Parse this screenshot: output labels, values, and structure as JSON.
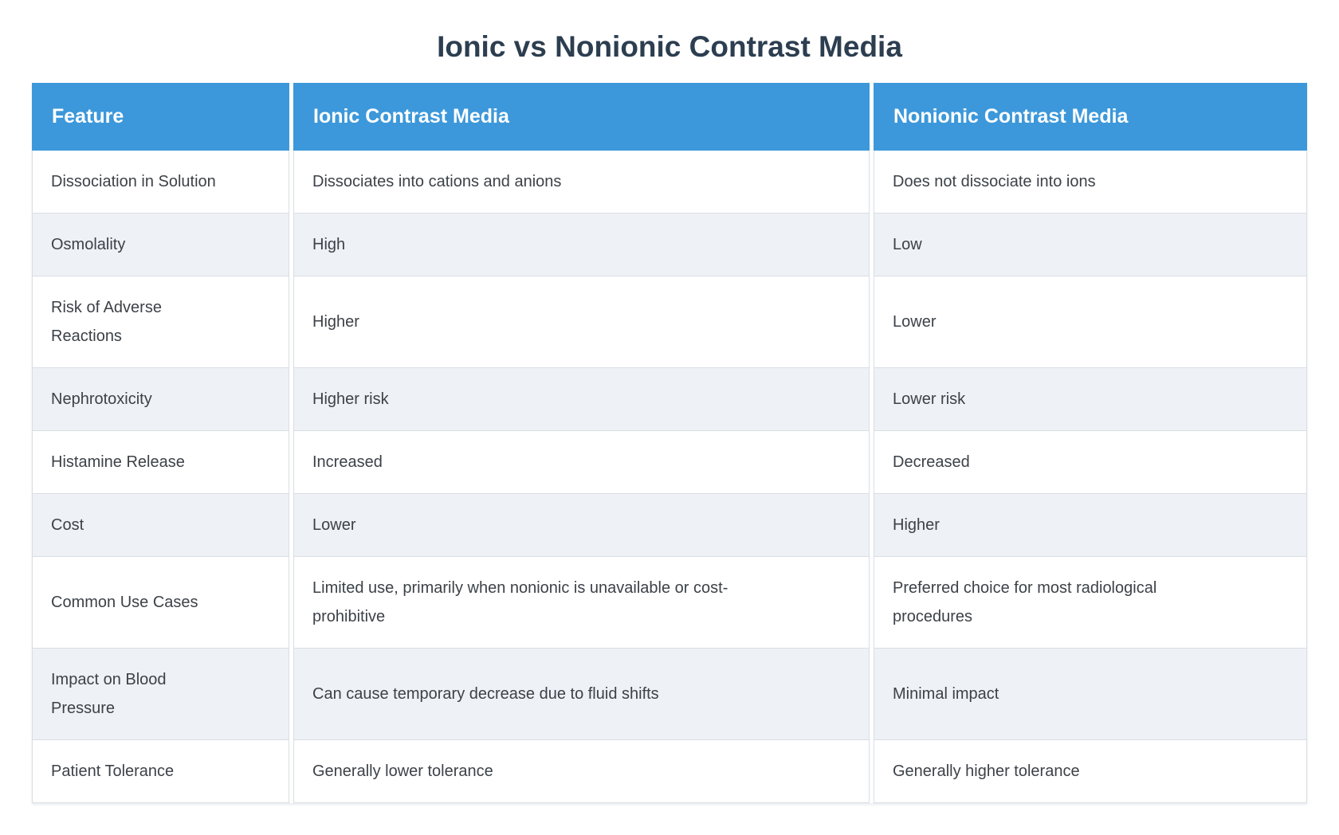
{
  "title": "Ionic vs Nonionic Contrast Media",
  "table": {
    "columns": [
      "Feature",
      "Ionic Contrast Media",
      "Nonionic Contrast Media"
    ],
    "rows": [
      {
        "feature": "Dissociation in Solution",
        "ionic": "Dissociates into cations and anions",
        "nonionic": "Does not dissociate into ions"
      },
      {
        "feature": "Osmolality",
        "ionic": "High",
        "nonionic": "Low"
      },
      {
        "feature": "Risk of Adverse\nReactions",
        "ionic": "Higher",
        "nonionic": "Lower"
      },
      {
        "feature": "Nephrotoxicity",
        "ionic": "Higher risk",
        "nonionic": "Lower risk"
      },
      {
        "feature": "Histamine Release",
        "ionic": "Increased",
        "nonionic": "Decreased"
      },
      {
        "feature": "Cost",
        "ionic": "Lower",
        "nonionic": "Higher"
      },
      {
        "feature": "Common Use Cases",
        "ionic": "Limited use, primarily when nonionic is unavailable or cost-\nprohibitive",
        "nonionic": "Preferred choice for most radiological\nprocedures"
      },
      {
        "feature": "Impact on Blood\nPressure",
        "ionic": "Can cause temporary decrease due to fluid shifts",
        "nonionic": "Minimal impact"
      },
      {
        "feature": "Patient Tolerance",
        "ionic": "Generally lower tolerance",
        "nonionic": "Generally higher tolerance"
      }
    ]
  },
  "colors": {
    "header_bg": "#3c98da",
    "header_text": "#ffffff",
    "title": "#2c3e50",
    "body_text": "#3c4248",
    "stripe_row": "#eef1f6",
    "border": "#d9dee4",
    "page_bg": "#ffffff"
  }
}
